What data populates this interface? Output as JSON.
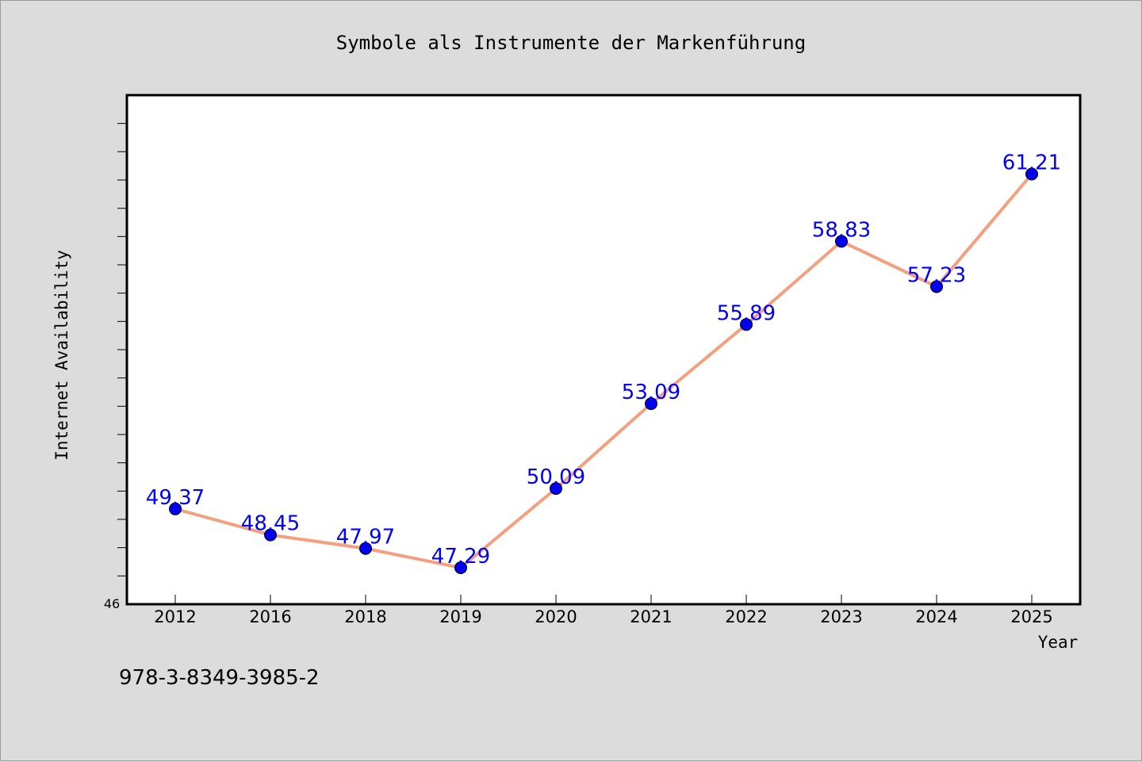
{
  "chart_data": {
    "type": "line",
    "title": "Symbole als Instrumente der Markenführung",
    "xlabel": "Year",
    "ylabel": "Internet Availability",
    "categories": [
      "2012",
      "2016",
      "2018",
      "2019",
      "2020",
      "2021",
      "2022",
      "2023",
      "2024",
      "2025"
    ],
    "series": [
      {
        "values": [
          49.37,
          48.45,
          47.97,
          47.29,
          50.09,
          53.09,
          55.89,
          58.83,
          57.23,
          61.21
        ],
        "value_labels": [
          "49.37",
          "48.45",
          "47.97",
          "47.29",
          "50.09",
          "53.09",
          "55.89",
          "58.83",
          "57.23",
          "61.21"
        ],
        "line_color": "#f4a07f",
        "marker_color": "#0000ee",
        "label_color": "#0000ff"
      }
    ],
    "ylim": [
      46,
      64
    ],
    "y_tick_labels": [
      "46"
    ],
    "grid": false,
    "legend": "none"
  },
  "footer": {
    "isbn": "978-3-8349-3985-2"
  },
  "colors": {
    "background": "#dcdcdc",
    "plot_background": "#ffffff",
    "axis": "#000000"
  }
}
